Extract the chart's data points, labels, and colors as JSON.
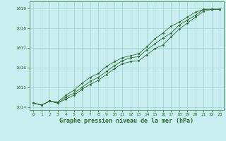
{
  "xlabel": "Graphe pression niveau de la mer (hPa)",
  "x": [
    0,
    1,
    2,
    3,
    4,
    5,
    6,
    7,
    8,
    9,
    10,
    11,
    12,
    13,
    14,
    15,
    16,
    17,
    18,
    19,
    20,
    21,
    22,
    23
  ],
  "y_min": [
    1014.2,
    1014.1,
    1014.3,
    1014.2,
    1014.4,
    1014.6,
    1014.9,
    1015.15,
    1015.35,
    1015.65,
    1015.95,
    1016.2,
    1016.3,
    1016.35,
    1016.65,
    1016.95,
    1017.15,
    1017.55,
    1017.95,
    1018.25,
    1018.55,
    1018.85,
    1018.95,
    1018.95
  ],
  "y_avg": [
    1014.2,
    1014.1,
    1014.3,
    1014.2,
    1014.5,
    1014.7,
    1015.0,
    1015.3,
    1015.5,
    1015.8,
    1016.1,
    1016.35,
    1016.5,
    1016.55,
    1016.9,
    1017.2,
    1017.5,
    1017.75,
    1018.15,
    1018.4,
    1018.65,
    1018.95,
    1018.95,
    1018.95
  ],
  "y_max": [
    1014.2,
    1014.1,
    1014.3,
    1014.25,
    1014.6,
    1014.85,
    1015.2,
    1015.5,
    1015.7,
    1016.05,
    1016.3,
    1016.5,
    1016.6,
    1016.7,
    1017.05,
    1017.45,
    1017.75,
    1018.1,
    1018.3,
    1018.55,
    1018.8,
    1018.95,
    1018.95,
    1018.95
  ],
  "line_color": "#2d6a2d",
  "bg_color": "#c8eef0",
  "grid_color": "#9fcfcf",
  "ylim": [
    1013.85,
    1019.35
  ],
  "yticks": [
    1014,
    1015,
    1016,
    1017,
    1018,
    1019
  ],
  "xticks": [
    0,
    1,
    2,
    3,
    4,
    5,
    6,
    7,
    8,
    9,
    10,
    11,
    12,
    13,
    14,
    15,
    16,
    17,
    18,
    19,
    20,
    21,
    22,
    23
  ],
  "tick_fontsize": 4.5,
  "label_fontsize": 6.0,
  "marker": "D",
  "marker_size": 1.5,
  "line_width": 0.6
}
